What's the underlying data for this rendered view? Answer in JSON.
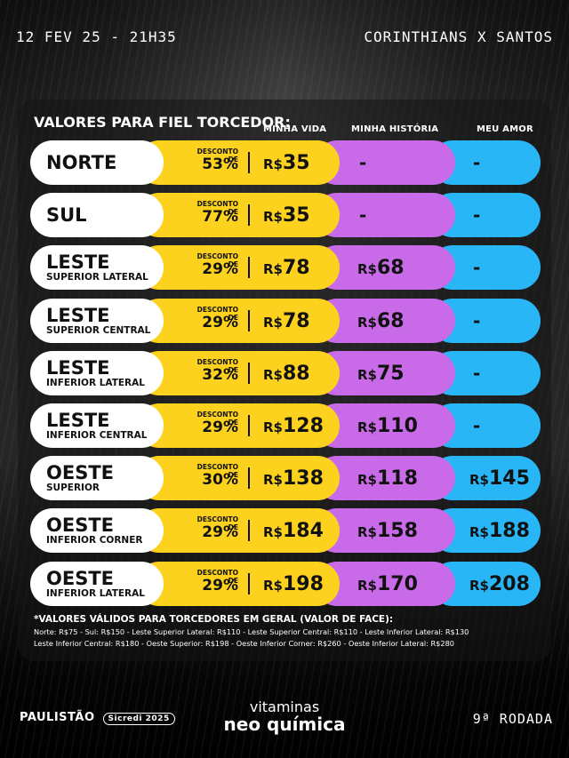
{
  "header": {
    "date": "12 FEV 25 - 21H35",
    "match": "CORINTHIANS X SANTOS"
  },
  "table": {
    "title": "VALORES PARA FIEL TORCEDOR:",
    "columns": [
      "MINHA VIDA",
      "MINHA HISTÓRIA",
      "MEU AMOR"
    ],
    "discount_label": "DESCONTO DE",
    "currency": "R$",
    "colors": {
      "vida": "#fdd21e",
      "historia": "#c96ae8",
      "amor": "#29b6f6"
    },
    "rows": [
      {
        "name": "NORTE",
        "sub": "",
        "discount": "53%",
        "vida": "35",
        "historia": "-",
        "amor": "-"
      },
      {
        "name": "SUL",
        "sub": "",
        "discount": "77%",
        "vida": "35",
        "historia": "-",
        "amor": "-"
      },
      {
        "name": "LESTE",
        "sub": "SUPERIOR LATERAL",
        "discount": "29%",
        "vida": "78",
        "historia": "68",
        "amor": "-"
      },
      {
        "name": "LESTE",
        "sub": "SUPERIOR CENTRAL",
        "discount": "29%",
        "vida": "78",
        "historia": "68",
        "amor": "-"
      },
      {
        "name": "LESTE",
        "sub": "INFERIOR LATERAL",
        "discount": "32%",
        "vida": "88",
        "historia": "75",
        "amor": "-"
      },
      {
        "name": "LESTE",
        "sub": "INFERIOR CENTRAL",
        "discount": "29%",
        "vida": "128",
        "historia": "110",
        "amor": "-"
      },
      {
        "name": "OESTE",
        "sub": "SUPERIOR",
        "discount": "30%",
        "vida": "138",
        "historia": "118",
        "amor": "145"
      },
      {
        "name": "OESTE",
        "sub": "INFERIOR CORNER",
        "discount": "29%",
        "vida": "184",
        "historia": "158",
        "amor": "188"
      },
      {
        "name": "OESTE",
        "sub": "INFERIOR LATERAL",
        "discount": "29%",
        "vida": "198",
        "historia": "170",
        "amor": "208"
      }
    ]
  },
  "notes": {
    "title": "*VALORES VÁLIDOS PARA TORCEDORES EM GERAL (VALOR DE FACE):",
    "line1": "Norte: R$75 - Sul: R$150 - Leste Superior Lateral: R$110 - Leste Superior Central: R$110 - Leste Inferior Lateral: R$130",
    "line2": "Leste Inferior Central: R$180 - Oeste Superior: R$198 - Oeste Inferior Corner: R$260 - Oeste Inferior Lateral: R$280"
  },
  "footer": {
    "left_brand": "PAULISTÃO",
    "left_sponsor": "Sicredi 2025",
    "center_top": "vitaminas",
    "center_bottom": "neo química",
    "round": "9ª RODADA"
  }
}
